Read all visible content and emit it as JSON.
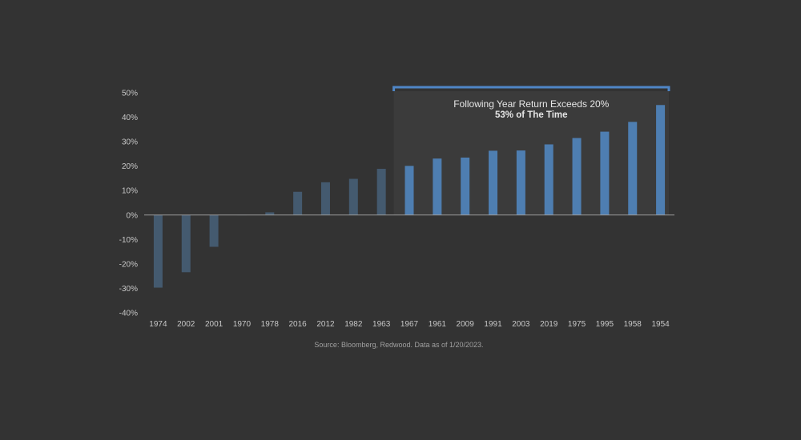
{
  "chart_data": {
    "type": "bar",
    "categories": [
      "1974",
      "2002",
      "2001",
      "1970",
      "1978",
      "2016",
      "2012",
      "1982",
      "1963",
      "1967",
      "1961",
      "2009",
      "1991",
      "2003",
      "2019",
      "1975",
      "1995",
      "1958",
      "1954"
    ],
    "values": [
      -29.7,
      -23.4,
      -13.0,
      0.1,
      1.1,
      9.5,
      13.4,
      14.8,
      18.9,
      20.1,
      23.1,
      23.5,
      26.3,
      26.4,
      28.9,
      31.5,
      34.1,
      38.1,
      45.0
    ],
    "ylim": [
      -40,
      50
    ],
    "yticks": [
      "-40%",
      "-30%",
      "-20%",
      "-10%",
      "0%",
      "10%",
      "20%",
      "30%",
      "40%",
      "50%"
    ],
    "ytick_values": [
      -40,
      -30,
      -20,
      -10,
      0,
      10,
      20,
      30,
      40,
      50
    ],
    "highlight_start_index": 9,
    "colors": {
      "base_bar": "#445a6f",
      "highlight_bar": "#4e7eb1",
      "highlight_region": "#3b3b3b",
      "bracket": "#4f86c6",
      "text": "#c8c8c8",
      "annotation_text": "#e6e6e6",
      "axis": "#9a9a9a"
    },
    "annotation": {
      "line1": "Following Year Return Exceeds 20%",
      "line2": "53% of The Time"
    },
    "source": "Source: Bloomberg, Redwood. Data as of 1/20/2023.",
    "grid": false
  }
}
